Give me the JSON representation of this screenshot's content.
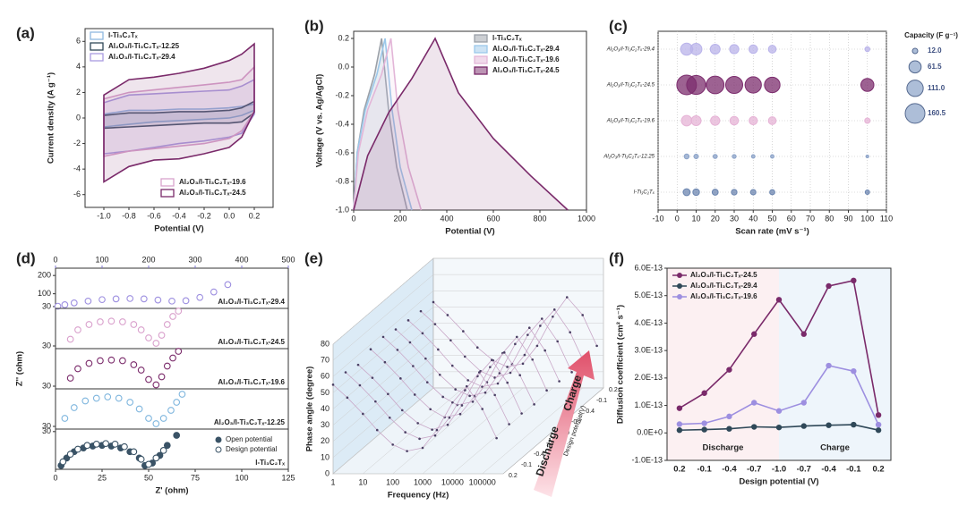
{
  "chart_data": [
    {
      "type": "line",
      "title": "(a)",
      "xlabel": "Potential (V)",
      "ylabel": "Current density (A g⁻¹)",
      "xlim": [
        -1.15,
        0.35
      ],
      "ylim": [
        -7,
        7
      ],
      "xticks": [
        {
          "value": -1,
          "label": "-1.0"
        },
        -0.8,
        -0.6,
        -0.4,
        -0.2,
        {
          "value": 0,
          "label": "0.0"
        },
        0.2
      ],
      "yticks": [
        -6,
        -4,
        -2,
        0,
        2,
        4,
        6
      ],
      "area": true,
      "legend": [
        "upper left",
        "upper left",
        "upper left",
        "lower right",
        "lower right"
      ],
      "series": [
        {
          "name": "l-Ti₃C₂Tₓ",
          "color": "#8fb8e0",
          "x": [
            -1,
            -0.8,
            -0.6,
            -0.4,
            -0.2,
            0,
            0.1,
            0.2,
            0.2,
            0.1,
            0,
            -0.2,
            -0.4,
            -0.6,
            -0.8,
            -1
          ],
          "values": [
            0.3,
            0.6,
            0.6,
            0.7,
            0.7,
            0.8,
            0.9,
            1.1,
            0.6,
            0.2,
            0,
            -0.1,
            -0.2,
            -0.3,
            -0.5,
            -0.7
          ]
        },
        {
          "name": "Al₂O₃/l-Ti₃C₂Tₓ-12.25",
          "color": "#2f4858",
          "x": [
            -1,
            -0.8,
            -0.6,
            -0.4,
            -0.2,
            0,
            0.1,
            0.2,
            0.2,
            0.1,
            0,
            -0.2,
            -0.4,
            -0.6,
            -0.8,
            -1
          ],
          "values": [
            0.2,
            0.4,
            0.4,
            0.5,
            0.5,
            0.6,
            0.8,
            1.3,
            0.4,
            -0.3,
            -0.4,
            -0.4,
            -0.5,
            -0.6,
            -0.7,
            -0.8
          ]
        },
        {
          "name": "Al₂O₃/l-Ti₃C₂Tₓ-29.4",
          "color": "#a99be0",
          "x": [
            -1,
            -0.8,
            -0.6,
            -0.4,
            -0.2,
            0,
            0.1,
            0.2,
            0.2,
            0.1,
            0,
            -0.2,
            -0.4,
            -0.6,
            -0.8,
            -1
          ],
          "values": [
            1.2,
            1.8,
            1.9,
            2.0,
            2.1,
            2.2,
            2.5,
            3.0,
            0.3,
            -1.2,
            -1.5,
            -1.8,
            -2.0,
            -2.3,
            -2.6,
            -2.8
          ]
        },
        {
          "name": "Al₂O₃/l-Ti₃C₂Tₓ-19.6",
          "color": "#d9a3cc",
          "x": [
            -1,
            -0.8,
            -0.6,
            -0.4,
            -0.2,
            0,
            0.1,
            0.2,
            0.2,
            0.1,
            0,
            -0.2,
            -0.4,
            -0.6,
            -0.8,
            -1
          ],
          "values": [
            1.5,
            2.0,
            2.2,
            2.4,
            2.6,
            2.8,
            3.0,
            4.0,
            0.5,
            -1,
            -1.6,
            -2,
            -2.2,
            -2.4,
            -2.6,
            -3.0
          ]
        },
        {
          "name": "Al₂O₃/l-Ti₃C₂Tₓ-24.5",
          "color": "#7a2a6a",
          "x": [
            -1,
            -0.8,
            -0.6,
            -0.4,
            -0.2,
            0,
            0.1,
            0.2,
            0.2,
            0.1,
            0,
            -0.2,
            -0.4,
            -0.6,
            -0.8,
            -1
          ],
          "values": [
            1.8,
            3.0,
            3.2,
            3.5,
            3.9,
            4.5,
            5.0,
            5.8,
            0.5,
            -1.5,
            -2.3,
            -2.8,
            -3.2,
            -3.3,
            -3.8,
            -5.0
          ]
        }
      ]
    },
    {
      "type": "line",
      "title": "(b)",
      "xlabel": "Potential (V)",
      "ylabel": "Voltage (V vs. Ag/AgCl)",
      "xlim": [
        0,
        1000
      ],
      "ylim": [
        -1,
        0.25
      ],
      "xticks": [
        0,
        200,
        400,
        600,
        800,
        1000
      ],
      "yticks": [
        {
          "value": -1,
          "label": "-1.0"
        },
        -0.8,
        -0.6,
        -0.4,
        -0.2,
        {
          "value": 0,
          "label": "0.0"
        },
        0.2
      ],
      "area": true,
      "legend": "upper right",
      "series": [
        {
          "name": "l-Ti₃C₂Tₓ",
          "color": "#9aa0a8",
          "x": [
            0,
            15,
            45,
            90,
            120,
            150,
            185,
            230
          ],
          "values": [
            -1,
            -0.6,
            -0.3,
            -0.05,
            0.2,
            -0.3,
            -0.7,
            -1
          ]
        },
        {
          "name": "Al₂O₃/l-Ti₃C₂Tₓ-29.4",
          "color": "#9cc8ea",
          "x": [
            0,
            15,
            50,
            100,
            135,
            165,
            200,
            250
          ],
          "values": [
            -1,
            -0.6,
            -0.3,
            -0.05,
            0.2,
            -0.3,
            -0.7,
            -1
          ]
        },
        {
          "name": "Al₂O₃/l-Ti₃C₂Tₓ-19.6",
          "color": "#e3b6d8",
          "x": [
            0,
            20,
            60,
            120,
            160,
            190,
            235,
            290
          ],
          "values": [
            -1,
            -0.6,
            -0.3,
            -0.05,
            0.2,
            -0.3,
            -0.7,
            -1
          ]
        },
        {
          "name": "Al₂O₃/l-Ti₃C₂Tₓ-24.5",
          "color": "#7a2a6a",
          "x": [
            0,
            60,
            150,
            250,
            350,
            450,
            600,
            760,
            920
          ],
          "values": [
            -1,
            -0.62,
            -0.32,
            -0.08,
            0.2,
            -0.18,
            -0.5,
            -0.76,
            -1
          ]
        }
      ]
    },
    {
      "type": "bubble",
      "title": "(c)",
      "xlabel": "Scan rate (mV s⁻¹)",
      "xlim": [
        -10,
        110
      ],
      "xticks": [
        -10,
        0,
        10,
        20,
        30,
        40,
        50,
        60,
        70,
        80,
        90,
        100,
        110
      ],
      "grid": true,
      "categories": [
        "Al₂O₃/l-Ti₃C₂Tₓ-29.4",
        "Al₂O₃/l-Ti₃C₂Tₓ-24.5",
        "Al₂O₃/l-Ti₃C₂Tₓ-19.6",
        "Al₂O₃/l-Ti₃C₂Tₓ-12.25",
        "l-Ti₃C₂Tₓ"
      ],
      "colors": [
        "#b9b3ea",
        "#7c2d6e",
        "#e6b3d6",
        "#8aa2c8",
        "#6c86b0"
      ],
      "x": [
        5,
        10,
        20,
        30,
        40,
        50,
        100
      ],
      "values": [
        [
          60,
          55,
          40,
          35,
          30,
          25,
          10
        ],
        [
          160,
          150,
          130,
          120,
          110,
          100,
          70
        ],
        [
          45,
          40,
          35,
          30,
          28,
          25,
          12
        ],
        [
          10,
          8,
          7,
          6,
          5,
          5,
          3
        ],
        [
          20,
          18,
          15,
          13,
          12,
          11,
          8
        ]
      ],
      "size_title": "Capacity (F g⁻¹)",
      "size_legend": [
        {
          "value": 12,
          "label": "12.0"
        },
        61.5,
        {
          "value": 111,
          "label": "111.0"
        },
        160.5
      ]
    },
    {
      "type": "scatter",
      "title": "(d)",
      "xlabel": "Z' (ohm)",
      "ylabel": "Z'' (ohm)",
      "xlim": [
        0,
        125
      ],
      "xticks": [
        0,
        25,
        50,
        75,
        100,
        125
      ],
      "x2lim": [
        0,
        500
      ],
      "x2ticks": [
        0,
        100,
        200,
        300,
        400,
        500
      ],
      "panels": [
        {
          "label": "Al₂O₃/l-Ti₃C₂Tₓ-29.4",
          "color": "#9d8fe0",
          "axis": "x2",
          "ylim": [
            20,
            240
          ],
          "yticks": [
            30,
            100,
            200
          ],
          "series": [
            {
              "marker": "open",
              "x": [
                5,
                20,
                40,
                70,
                100,
                130,
                160,
                190,
                220,
                250,
                280,
                310,
                340,
                370
              ],
              "values": [
                32,
                40,
                50,
                60,
                68,
                72,
                74,
                72,
                66,
                60,
                62,
                80,
                110,
                150
              ]
            }
          ]
        },
        {
          "label": "Al₂O₃/l-Ti₃C₂Tₓ-24.5",
          "color": "#d9a0cc",
          "ylim": [
            28,
            58
          ],
          "yticks": [
            30
          ],
          "series": [
            {
              "marker": "open",
              "x": [
                8,
                12,
                18,
                24,
                30,
                36,
                42,
                46,
                50,
                54,
                57,
                60,
                63,
                66
              ],
              "values": [
                35,
                42,
                46,
                48,
                48.5,
                48,
                46,
                42,
                36,
                32,
                38,
                46,
                52,
                56
              ]
            }
          ]
        },
        {
          "label": "Al₂O₃/l-Ti₃C₂Tₓ-19.6",
          "color": "#7a2a6a",
          "ylim": [
            28,
            58
          ],
          "yticks": [
            30
          ],
          "series": [
            {
              "marker": "open",
              "x": [
                8,
                12,
                18,
                24,
                30,
                36,
                42,
                46,
                50,
                54,
                57,
                60,
                63,
                66
              ],
              "values": [
                36,
                43,
                47,
                49,
                49.5,
                49,
                46,
                42,
                35,
                31,
                37,
                45,
                51,
                56
              ]
            }
          ]
        },
        {
          "label": "Al₂O₃/l-Ti₃C₂Tₓ-12.25",
          "color": "#7fb6de",
          "ylim": [
            28,
            58
          ],
          "yticks": [
            30
          ],
          "series": [
            {
              "marker": "open",
              "x": [
                5,
                10,
                16,
                22,
                28,
                34,
                40,
                45,
                50,
                54,
                58,
                62,
                65,
                68
              ],
              "values": [
                36,
                44,
                49,
                51,
                52,
                51,
                48,
                43,
                36,
                32,
                36,
                42,
                48,
                54
              ]
            }
          ]
        },
        {
          "label": "l-Ti₃C₂Tₓ",
          "color": "#3a5366",
          "ylim": [
            0,
            32
          ],
          "yticks": [
            30
          ],
          "series": [
            {
              "name": "Open potential",
              "marker": "filled",
              "x": [
                3,
                6,
                10,
                15,
                20,
                25,
                30,
                35,
                40,
                45,
                48,
                52,
                56,
                60,
                65
              ],
              "values": [
                3,
                9,
                14,
                17,
                18.5,
                19,
                18.5,
                17,
                14,
                9,
                3,
                5,
                11,
                19,
                27
              ]
            },
            {
              "name": "Design potential",
              "marker": "open",
              "x": [
                4,
                8,
                12,
                17,
                22,
                27,
                32,
                37,
                42,
                46,
                50,
                54,
                58
              ],
              "values": [
                6,
                12,
                16,
                19,
                20,
                20.5,
                20,
                18,
                14,
                8,
                4,
                9,
                15
              ]
            }
          ]
        }
      ]
    },
    {
      "type": "waterfall",
      "title": "(e)",
      "xlabel": "Frequency (Hz)",
      "ylabel": "Phase angle (degree)",
      "zlabel": "Design potential(V)",
      "log": true,
      "xlim": [
        1,
        500000
      ],
      "xticks": [
        1,
        10,
        100,
        1000,
        10000,
        100000
      ],
      "ylim": [
        0,
        80
      ],
      "yticks": [
        0,
        10,
        20,
        30,
        40,
        50,
        60,
        70,
        80
      ],
      "zcategories": [
        "0.2",
        "-0.1",
        "-0.4",
        "-0.7",
        "-1.0",
        "-0.7",
        "-0.4",
        "-0.1",
        "0.2"
      ],
      "color": "#4a3f63",
      "x": [
        1,
        3,
        10,
        30,
        100,
        300,
        1000,
        3000,
        10000,
        30000,
        100000,
        300000
      ],
      "series": [
        {
          "values": [
            55,
            47,
            37,
            27,
            18,
            14,
            16,
            27,
            44,
            54,
            40,
            22
          ]
        },
        {
          "values": [
            56,
            48,
            38,
            28,
            19,
            15,
            17,
            28,
            45,
            56,
            42,
            24
          ]
        },
        {
          "values": [
            54,
            46,
            36,
            26,
            18,
            14,
            17,
            29,
            47,
            57,
            43,
            24
          ]
        },
        {
          "values": [
            57,
            49,
            39,
            29,
            20,
            15,
            17,
            28,
            46,
            55,
            41,
            23
          ]
        },
        {
          "values": [
            58,
            50,
            40,
            30,
            21,
            16,
            18,
            30,
            48,
            58,
            44,
            25
          ]
        },
        {
          "values": [
            56,
            48,
            38,
            28,
            19,
            15,
            17,
            29,
            47,
            57,
            43,
            24
          ]
        },
        {
          "values": [
            55,
            47,
            37,
            27,
            18,
            14,
            16,
            28,
            46,
            56,
            42,
            23
          ]
        },
        {
          "values": [
            54,
            46,
            36,
            26,
            17,
            13,
            16,
            27,
            45,
            55,
            41,
            22
          ]
        },
        {
          "values": [
            53,
            45,
            35,
            25,
            17,
            13,
            15,
            26,
            44,
            56,
            45,
            26
          ]
        }
      ],
      "annotations": [
        {
          "text": "Discharge",
          "color": "#3a3a3a"
        },
        {
          "text": "Charge",
          "color": "#e0506a"
        }
      ]
    },
    {
      "type": "line",
      "title": "(f)",
      "xlabel": "Design potential (V)",
      "ylabel": "Diffusion coefficient (cm² s⁻¹)",
      "categories": [
        "0.2",
        "-0.1",
        "-0.4",
        "-0.7",
        "-1.0",
        "-0.7",
        "-0.4",
        "-0.1",
        "0.2"
      ],
      "ylim": [
        -1e-13,
        6e-13
      ],
      "yticks": [
        {
          "value": -1e-13,
          "label": "-1.0E-13"
        },
        {
          "value": 0,
          "label": "0.0E+0"
        },
        {
          "value": 1e-13,
          "label": "1.0E-13"
        },
        {
          "value": 2e-13,
          "label": "2.0E-13"
        },
        {
          "value": 3e-13,
          "label": "3.0E-13"
        },
        {
          "value": 4e-13,
          "label": "4.0E-13"
        },
        {
          "value": 5e-13,
          "label": "5.0E-13"
        },
        {
          "value": 6e-13,
          "label": "6.0E-13"
        }
      ],
      "markers": true,
      "legend": "upper left",
      "series": [
        {
          "name": "Al₂O₃/l-Ti₃C₂Tₓ-24.5",
          "color": "#7a2a6a",
          "values": [
            9e-14,
            1.45e-13,
            2.3e-13,
            3.6e-13,
            4.85e-13,
            3.6e-13,
            5.35e-13,
            5.55e-13,
            6.5e-14
          ]
        },
        {
          "name": "Al₂O₃/l-Ti₃C₂Tₓ-29.4",
          "color": "#2f4858",
          "values": [
            1e-14,
            1.2e-14,
            1.5e-14,
            2.2e-14,
            2e-14,
            2.5e-14,
            2.8e-14,
            3e-14,
            1e-14
          ]
        },
        {
          "name": "Al₂O₃/l-Ti₃C₂Tₓ-19.6",
          "color": "#9d8fe0",
          "values": [
            3.2e-14,
            3.5e-14,
            6e-14,
            1.1e-13,
            8e-14,
            1.1e-13,
            2.45e-13,
            2.25e-13,
            3e-14
          ]
        }
      ],
      "annotations": [
        {
          "text": "Discharge",
          "color": "#e0506a"
        },
        {
          "text": "Charge",
          "color": "#e0506a"
        }
      ]
    }
  ]
}
